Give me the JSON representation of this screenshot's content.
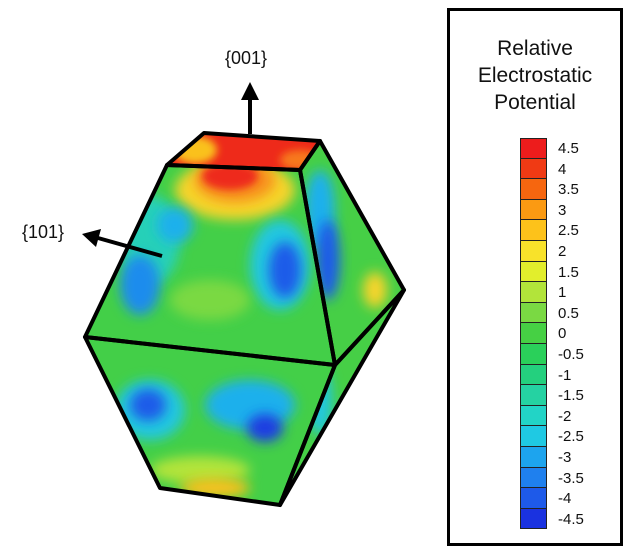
{
  "labels": {
    "face_001": "{001}",
    "face_101": "{101}"
  },
  "legend": {
    "title": [
      "Relative",
      "Electrostatic",
      "Potential"
    ],
    "ticks": [
      "4.5",
      "4",
      "3.5",
      "3",
      "2.5",
      "2",
      "1.5",
      "1",
      "0.5",
      "0",
      "-0.5",
      "-1",
      "-1.5",
      "-2",
      "-2.5",
      "-3",
      "-3.5",
      "-4",
      "-4.5"
    ],
    "colors": [
      "#ed1c1c",
      "#f03a14",
      "#f6660f",
      "#fb9a12",
      "#fdc21a",
      "#f8e22a",
      "#e2ee2c",
      "#b2e43a",
      "#7ad943",
      "#46d044",
      "#2ad05a",
      "#24d07e",
      "#25d2a2",
      "#22d4c6",
      "#1fc9e3",
      "#1da4ee",
      "#1f80ee",
      "#1e5ae9",
      "#1a32e0"
    ]
  },
  "colors": {
    "red_high": "#ed1c1c",
    "green_mid": "#4ccf46",
    "blue_low": "#1e64e8",
    "edge": "#000000"
  }
}
